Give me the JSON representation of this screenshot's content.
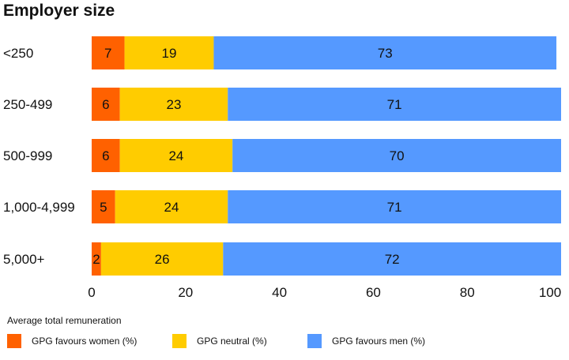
{
  "chart_data": {
    "type": "bar",
    "orientation": "horizontal",
    "stacked": true,
    "title": "Employer size",
    "categories": [
      "<250",
      "250-499",
      "500-999",
      "1,000-4,999",
      "5,000+"
    ],
    "series": [
      {
        "name": "GPG favours women (%)",
        "color": "#FF6100",
        "values": [
          7,
          6,
          6,
          5,
          2
        ]
      },
      {
        "name": "GPG neutral (%)",
        "color": "#FFCC00",
        "values": [
          19,
          23,
          24,
          24,
          26
        ]
      },
      {
        "name": "GPG favours men (%)",
        "color": "#5599FF",
        "values": [
          73,
          71,
          70,
          71,
          72
        ]
      }
    ],
    "xlim": [
      0,
      100
    ],
    "xticks": [
      "0",
      "20",
      "40",
      "60",
      "80",
      "100"
    ],
    "legend_title": "Average total remuneration",
    "legend_position": "bottom",
    "grid": false
  }
}
